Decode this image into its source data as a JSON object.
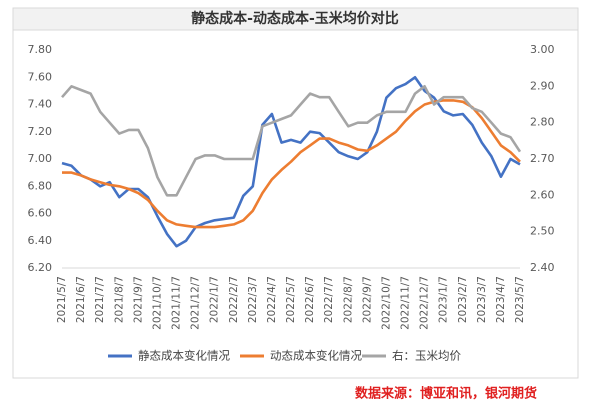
{
  "chart_data": {
    "type": "line",
    "title": "静态成本-动态成本-玉米均价对比",
    "categories": [
      "2021/5/7",
      null,
      "2021/6/7",
      null,
      "2021/7/7",
      null,
      "2021/8/7",
      null,
      "2021/9/7",
      null,
      "2021/10/7",
      null,
      "2021/11/7",
      null,
      "2021/12/7",
      null,
      "2022/1/7",
      null,
      "2022/2/7",
      null,
      "2022/3/7",
      null,
      "2022/4/7",
      null,
      "2022/5/7",
      null,
      "2022/6/7",
      null,
      "2022/7/7",
      null,
      "2022/8/7",
      null,
      "2022/9/7",
      null,
      "2022/10/7",
      null,
      "2022/11/7",
      null,
      "2022/12/7",
      null,
      "2023/1/7",
      null,
      "2023/2/7",
      null,
      "2023/3/7",
      null,
      "2023/4/7",
      null,
      "2023/5/7"
    ],
    "series": [
      {
        "name": "静态成本变化情况",
        "color": "#4472c4",
        "values": [
          6.97,
          6.95,
          6.88,
          6.85,
          6.8,
          6.83,
          6.72,
          6.78,
          6.78,
          6.72,
          6.58,
          6.45,
          6.36,
          6.4,
          6.5,
          6.53,
          6.55,
          6.56,
          6.57,
          6.73,
          6.8,
          7.25,
          7.33,
          7.12,
          7.14,
          7.12,
          7.2,
          7.19,
          7.12,
          7.05,
          7.02,
          7.0,
          7.05,
          7.2,
          7.45,
          7.52,
          7.55,
          7.6,
          7.5,
          7.45,
          7.35,
          7.32,
          7.33,
          7.25,
          7.12,
          7.02,
          6.87,
          7.0,
          6.96
        ]
      },
      {
        "name": "动态成本变化情况",
        "color": "#ed7d31",
        "values": [
          6.9,
          6.9,
          6.88,
          6.85,
          6.83,
          6.81,
          6.8,
          6.78,
          6.75,
          6.7,
          6.62,
          6.55,
          6.52,
          6.51,
          6.5,
          6.5,
          6.5,
          6.51,
          6.52,
          6.55,
          6.62,
          6.75,
          6.85,
          6.92,
          6.98,
          7.05,
          7.1,
          7.15,
          7.15,
          7.12,
          7.1,
          7.07,
          7.06,
          7.1,
          7.15,
          7.2,
          7.28,
          7.35,
          7.4,
          7.42,
          7.43,
          7.43,
          7.42,
          7.38,
          7.3,
          7.2,
          7.1,
          7.05,
          6.98
        ]
      },
      {
        "name": "右：玉米均价",
        "color": "#a5a5a5",
        "axis": "y2",
        "values": [
          2.87,
          2.9,
          2.89,
          2.88,
          2.83,
          2.8,
          2.77,
          2.78,
          2.78,
          2.73,
          2.65,
          2.6,
          2.6,
          2.65,
          2.7,
          2.71,
          2.71,
          2.7,
          2.7,
          2.7,
          2.7,
          2.79,
          2.8,
          2.81,
          2.82,
          2.85,
          2.88,
          2.87,
          2.87,
          2.83,
          2.79,
          2.8,
          2.8,
          2.82,
          2.83,
          2.83,
          2.83,
          2.88,
          2.9,
          2.85,
          2.87,
          2.87,
          2.87,
          2.84,
          2.83,
          2.8,
          2.77,
          2.76,
          2.72
        ]
      }
    ],
    "ylim": [
      6.2,
      7.8
    ],
    "yticks": [
      {
        "value": 6.2,
        "label": "6.20"
      },
      {
        "value": 6.4,
        "label": "6.40"
      },
      {
        "value": 6.6,
        "label": "6.60"
      },
      {
        "value": 6.8,
        "label": "6.80"
      },
      {
        "value": 7.0,
        "label": "7.00"
      },
      {
        "value": 7.2,
        "label": "7.20"
      },
      {
        "value": 7.4,
        "label": "7.40"
      },
      {
        "value": 7.6,
        "label": "7.60"
      },
      {
        "value": 7.8,
        "label": "7.80"
      }
    ],
    "y2lim": [
      2.4,
      3.0
    ],
    "y2ticks": [
      {
        "value": 2.4,
        "label": "2.40"
      },
      {
        "value": 2.5,
        "label": "2.50"
      },
      {
        "value": 2.6,
        "label": "2.60"
      },
      {
        "value": 2.7,
        "label": "2.70"
      },
      {
        "value": 2.8,
        "label": "2.80"
      },
      {
        "value": 2.9,
        "label": "2.90"
      },
      {
        "value": 3.0,
        "label": "3.00"
      }
    ],
    "grid": false,
    "legend": "bottom",
    "source": "数据来源：博亚和讯，银河期货"
  }
}
